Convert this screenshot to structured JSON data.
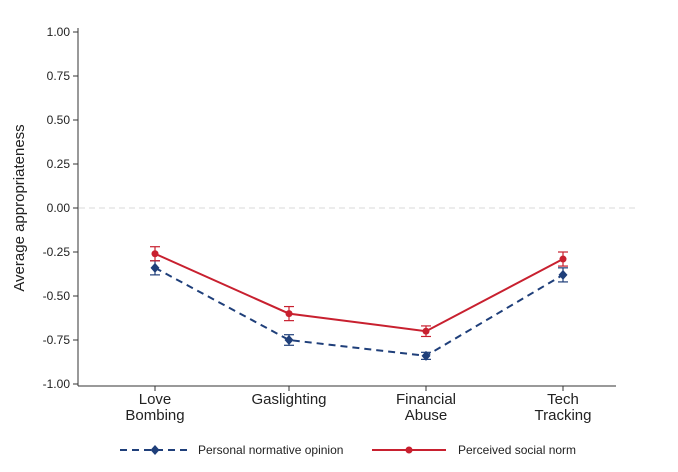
{
  "chart_data": {
    "type": "line",
    "title": "",
    "xlabel": "",
    "ylabel": "Average appropriateness",
    "ylim": [
      -1.0,
      1.0
    ],
    "yticks": [
      1.0,
      0.75,
      0.5,
      0.25,
      0.0,
      -0.25,
      -0.5,
      -0.75,
      -1.0
    ],
    "ytick_labels": [
      "1.00",
      "0.75",
      "0.50",
      "0.25",
      "0.00",
      "-0.25",
      "-0.50",
      "-0.75",
      "-1.00"
    ],
    "categories": [
      [
        "Love",
        "Bombing"
      ],
      [
        "Gaslighting"
      ],
      [
        "Financial",
        "Abuse"
      ],
      [
        "Tech",
        "Tracking"
      ]
    ],
    "reference_line": 0.0,
    "grid": false,
    "legend_position": "bottom",
    "series": [
      {
        "name": "Personal normative opinion",
        "values": [
          -0.34,
          -0.75,
          -0.84,
          -0.38
        ],
        "ci_low": [
          -0.38,
          -0.78,
          -0.86,
          -0.42
        ],
        "ci_high": [
          -0.3,
          -0.72,
          -0.82,
          -0.34
        ],
        "color": "#1f3f7a",
        "style": "dashed",
        "marker": "diamond"
      },
      {
        "name": "Perceived social norm",
        "values": [
          -0.26,
          -0.6,
          -0.7,
          -0.29
        ],
        "ci_low": [
          -0.3,
          -0.64,
          -0.73,
          -0.33
        ],
        "ci_high": [
          -0.22,
          -0.56,
          -0.67,
          -0.25
        ],
        "color": "#c8202f",
        "style": "solid",
        "marker": "circle"
      }
    ]
  }
}
